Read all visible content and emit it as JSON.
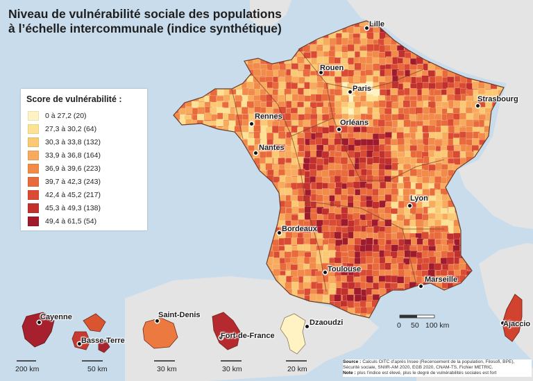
{
  "title": {
    "line1": "Niveau de vulnérabilité sociale des populations",
    "line2": "à l’échelle intercommunale (indice synthétique)"
  },
  "legend": {
    "title": "Score de vulnérabilité :",
    "classes": [
      {
        "label": "0 à 27,2 (20)",
        "color": "#fff3c4"
      },
      {
        "label": "27,3 à 30,2 (64)",
        "color": "#fde293"
      },
      {
        "label": "30,3 à 33,8 (132)",
        "color": "#fbc873"
      },
      {
        "label": "33,9 à 36,8 (164)",
        "color": "#f8ab5c"
      },
      {
        "label": "36,9 à 39,6 (223)",
        "color": "#f28b49"
      },
      {
        "label": "39,7 à 42,3 (243)",
        "color": "#e96b3c"
      },
      {
        "label": "42,4 à 45,2 (217)",
        "color": "#da4b33"
      },
      {
        "label": "45,3 à 49,3 (138)",
        "color": "#c2302e"
      },
      {
        "label": "49,4 à 61,5 (54)",
        "color": "#9e1a2c"
      }
    ]
  },
  "cities": [
    {
      "name": "Lille"
    },
    {
      "name": "Rouen"
    },
    {
      "name": "Paris"
    },
    {
      "name": "Strasbourg"
    },
    {
      "name": "Rennes"
    },
    {
      "name": "Orléans"
    },
    {
      "name": "Nantes"
    },
    {
      "name": "Lyon"
    },
    {
      "name": "Bordeaux"
    },
    {
      "name": "Toulouse"
    },
    {
      "name": "Marseille"
    },
    {
      "name": "Ajaccio"
    }
  ],
  "overseas": [
    {
      "name": "Cayenne",
      "scale": "200 km"
    },
    {
      "name": "Basse-Terre",
      "scale": "50 km"
    },
    {
      "name": "Saint-Denis",
      "scale": "30 km"
    },
    {
      "name": "Fort-de-France",
      "scale": "30 km"
    },
    {
      "name": "Dzaoudzi",
      "scale": "20 km"
    }
  ],
  "main_scale": {
    "labels": [
      "0",
      "50",
      "100 km"
    ]
  },
  "source": {
    "label": "Source :",
    "text": "Calculs OITC d’après Insee (Recensement de la population, Filosofi, BPE), Sécurité sociale, SNIIR-AM 2020, EGB 2020, CNAM-TS, Fichier METRIC.",
    "note_label": "Note :",
    "note_text": "plus l’indice est élevé, plus le degré de vulnérabilités sociales est fort"
  },
  "colors": {
    "sea": "#c9dcec",
    "neighbor_land": "#e4e4e4",
    "region_border": "#7a3e2a"
  }
}
